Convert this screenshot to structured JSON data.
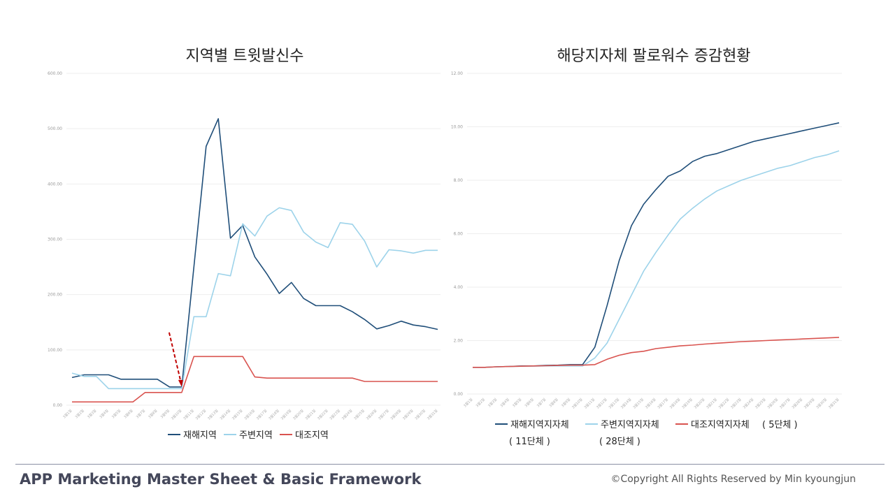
{
  "footer": {
    "left": "APP Marketing Master Sheet & Basic Framework",
    "right": "©Copyright All Rights Reserved by Min kyoungjun"
  },
  "colors": {
    "dark_blue": "#1f4e79",
    "light_blue": "#9dd3ea",
    "red": "#d9534f",
    "arrow": "#c00000",
    "grid": "#eeeeee"
  },
  "chart_data": [
    {
      "type": "line",
      "title": "지역별 트윗발신수",
      "ylim": [
        0,
        600
      ],
      "yticks": [
        "0.00",
        "100.00",
        "200.00",
        "300.00",
        "400.00",
        "500.00",
        "600.00"
      ],
      "grid": true,
      "legend_position": "bottom",
      "x": [
        "3월1일",
        "3월2일",
        "3월3일",
        "3월4일",
        "3월5일",
        "3월6일",
        "3월7일",
        "3월8일",
        "3월9일",
        "3월10일",
        "3월11일",
        "3월12일",
        "3월13일",
        "3월14일",
        "3월15일",
        "3월16일",
        "3월17일",
        "3월18일",
        "3월19일",
        "3월20일",
        "3월21일",
        "3월22일",
        "3월23일",
        "3월24일",
        "3월25일",
        "3월26일",
        "3월27일",
        "3월28일",
        "3월29일",
        "3월30일",
        "3월31일"
      ],
      "series": [
        {
          "name": "재해지역",
          "color": "#1f4e79",
          "values": [
            50,
            55,
            55,
            55,
            47,
            47,
            47,
            47,
            33,
            33,
            250,
            468,
            518,
            302,
            325,
            268,
            237,
            202,
            222,
            193,
            180,
            180,
            180,
            169,
            155,
            138,
            144,
            152,
            145,
            142,
            137
          ]
        },
        {
          "name": "주변지역",
          "color": "#9dd3ea",
          "values": [
            58,
            52,
            52,
            30,
            30,
            30,
            30,
            30,
            30,
            30,
            160,
            160,
            238,
            234,
            328,
            306,
            342,
            357,
            352,
            313,
            295,
            285,
            330,
            327,
            297,
            250,
            281,
            279,
            275,
            280,
            280
          ]
        },
        {
          "name": "대조지역",
          "color": "#d9534f",
          "values": [
            6,
            6,
            6,
            6,
            6,
            6,
            23,
            23,
            23,
            23,
            88,
            88,
            88,
            88,
            88,
            51,
            49,
            49,
            49,
            49,
            49,
            49,
            49,
            49,
            43,
            43,
            43,
            43,
            43,
            43,
            43
          ]
        }
      ]
    },
    {
      "type": "line",
      "title": "해당지자체 팔로워수 증감현황",
      "ylim": [
        0,
        12
      ],
      "yticks": [
        "0.00",
        "2.00",
        "4.00",
        "6.00",
        "8.00",
        "10.00",
        "12.00"
      ],
      "grid": true,
      "legend_position": "bottom",
      "x": [
        "3월1일",
        "3월2일",
        "3월3일",
        "3월4일",
        "3월5일",
        "3월6일",
        "3월7일",
        "3월8일",
        "3월9일",
        "3월10일",
        "3월11일",
        "3월12일",
        "3월13일",
        "3월14일",
        "3월15일",
        "3월16일",
        "3월17일",
        "3월18일",
        "3월19일",
        "3월20일",
        "3월21일",
        "3월22일",
        "3월23일",
        "3월24일",
        "3월25일",
        "3월26일",
        "3월27일",
        "3월28일",
        "3월29일",
        "3월30일",
        "3월31일"
      ],
      "series": [
        {
          "name": "재해지역지자체",
          "note": "( 11단체 )",
          "color": "#1f4e79",
          "values": [
            1.0,
            1.0,
            1.02,
            1.03,
            1.05,
            1.05,
            1.07,
            1.08,
            1.1,
            1.1,
            1.75,
            3.3,
            5.0,
            6.3,
            7.1,
            7.65,
            8.15,
            8.35,
            8.7,
            8.9,
            9.0,
            9.15,
            9.3,
            9.45,
            9.55,
            9.65,
            9.75,
            9.85,
            9.95,
            10.05,
            10.15
          ]
        },
        {
          "name": "주변지역지자체",
          "note": "( 28단체 )",
          "color": "#9dd3ea",
          "values": [
            1.0,
            1.0,
            1.02,
            1.03,
            1.04,
            1.04,
            1.05,
            1.05,
            1.05,
            1.05,
            1.35,
            1.9,
            2.8,
            3.7,
            4.6,
            5.3,
            5.95,
            6.55,
            6.95,
            7.3,
            7.6,
            7.8,
            8.0,
            8.15,
            8.3,
            8.45,
            8.55,
            8.7,
            8.85,
            8.95,
            9.1
          ]
        },
        {
          "name": "대조지역지자체",
          "note": "( 5단체 )",
          "color": "#d9534f",
          "values": [
            1.0,
            1.0,
            1.02,
            1.03,
            1.04,
            1.05,
            1.06,
            1.07,
            1.08,
            1.08,
            1.1,
            1.3,
            1.45,
            1.55,
            1.6,
            1.7,
            1.75,
            1.8,
            1.83,
            1.87,
            1.9,
            1.93,
            1.96,
            1.98,
            2.0,
            2.02,
            2.04,
            2.06,
            2.08,
            2.1,
            2.12
          ]
        }
      ]
    }
  ]
}
